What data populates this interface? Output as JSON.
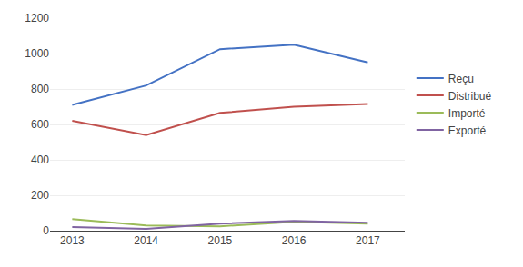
{
  "chart_data": {
    "type": "line",
    "x": [
      2013,
      2014,
      2015,
      2016,
      2017
    ],
    "series": [
      {
        "name": "Reçu",
        "color": "#4472C4",
        "values": [
          710,
          820,
          1025,
          1050,
          950
        ]
      },
      {
        "name": "Distribué",
        "color": "#C0504D",
        "values": [
          620,
          540,
          665,
          700,
          715
        ]
      },
      {
        "name": "Importé",
        "color": "#9BBB59",
        "values": [
          65,
          30,
          25,
          50,
          40
        ]
      },
      {
        "name": "Exporté",
        "color": "#8064A2",
        "values": [
          20,
          10,
          40,
          55,
          45
        ]
      }
    ],
    "xlim": [
      2012.7,
      2017.5
    ],
    "xticks": [
      2013,
      2014,
      2015,
      2016,
      2017
    ],
    "ylim": [
      0,
      1200
    ],
    "yticks": [
      0,
      200,
      400,
      600,
      800,
      1000,
      1200
    ],
    "grid": true,
    "legend": "right"
  }
}
